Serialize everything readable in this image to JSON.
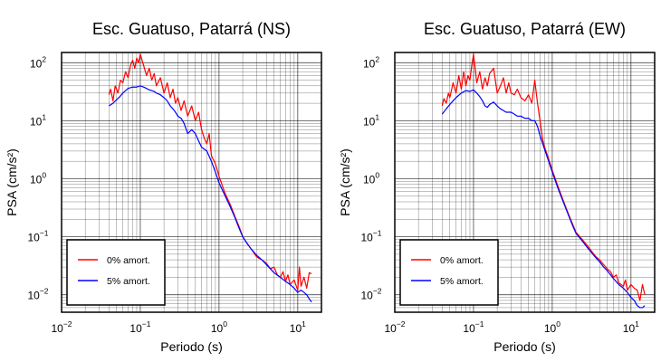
{
  "chart_data": [
    {
      "type": "line",
      "title": "Esc. Guatuso, Patarrá (NS)",
      "xlabel": "Periodo (s)",
      "ylabel": "PSA (cm/s²)",
      "xscale": "log",
      "yscale": "log",
      "xlim": [
        0.01,
        20
      ],
      "ylim": [
        0.005,
        150
      ],
      "grid": true,
      "legend_position": "lower-left",
      "x_ticks": [
        {
          "base": "10",
          "exp": "−2"
        },
        {
          "base": "10",
          "exp": "−1"
        },
        {
          "base": "10",
          "exp": "0"
        },
        {
          "base": "10",
          "exp": "1"
        }
      ],
      "y_ticks": [
        {
          "base": "10",
          "exp": "−2"
        },
        {
          "base": "10",
          "exp": "−1"
        },
        {
          "base": "10",
          "exp": "0"
        },
        {
          "base": "10",
          "exp": "1"
        },
        {
          "base": "10",
          "exp": "2"
        }
      ],
      "series": [
        {
          "name": "0% amort.",
          "color": "#ff0000",
          "points": [
            [
              0.04,
              28
            ],
            [
              0.042,
              35
            ],
            [
              0.045,
              22
            ],
            [
              0.048,
              40
            ],
            [
              0.052,
              30
            ],
            [
              0.056,
              50
            ],
            [
              0.06,
              45
            ],
            [
              0.065,
              70
            ],
            [
              0.07,
              55
            ],
            [
              0.075,
              90
            ],
            [
              0.08,
              110
            ],
            [
              0.085,
              80
            ],
            [
              0.09,
              120
            ],
            [
              0.095,
              100
            ],
            [
              0.1,
              140
            ],
            [
              0.11,
              90
            ],
            [
              0.12,
              60
            ],
            [
              0.13,
              80
            ],
            [
              0.14,
              50
            ],
            [
              0.15,
              65
            ],
            [
              0.16,
              40
            ],
            [
              0.18,
              55
            ],
            [
              0.2,
              30
            ],
            [
              0.22,
              45
            ],
            [
              0.24,
              25
            ],
            [
              0.26,
              35
            ],
            [
              0.28,
              20
            ],
            [
              0.3,
              25
            ],
            [
              0.33,
              15
            ],
            [
              0.36,
              22
            ],
            [
              0.4,
              12
            ],
            [
              0.45,
              18
            ],
            [
              0.5,
              10
            ],
            [
              0.55,
              14
            ],
            [
              0.6,
              7
            ],
            [
              0.65,
              5
            ],
            [
              0.7,
              4
            ],
            [
              0.75,
              6
            ],
            [
              0.8,
              2.5
            ],
            [
              0.9,
              1.8
            ],
            [
              1.0,
              1.1
            ],
            [
              1.2,
              0.55
            ],
            [
              1.4,
              0.35
            ],
            [
              1.6,
              0.22
            ],
            [
              1.8,
              0.15
            ],
            [
              2.0,
              0.1
            ],
            [
              2.3,
              0.075
            ],
            [
              2.6,
              0.06
            ],
            [
              3.0,
              0.045
            ],
            [
              3.5,
              0.04
            ],
            [
              4.0,
              0.035
            ],
            [
              4.5,
              0.028
            ],
            [
              5.0,
              0.03
            ],
            [
              5.5,
              0.022
            ],
            [
              6.0,
              0.02
            ],
            [
              6.5,
              0.025
            ],
            [
              7.0,
              0.017
            ],
            [
              7.5,
              0.022
            ],
            [
              8.0,
              0.015
            ],
            [
              9.0,
              0.018
            ],
            [
              10.0,
              0.012
            ],
            [
              10.5,
              0.03
            ],
            [
              11.0,
              0.014
            ],
            [
              12.0,
              0.02
            ],
            [
              13.0,
              0.013
            ],
            [
              14.0,
              0.024
            ],
            [
              15.0,
              0.023
            ]
          ]
        },
        {
          "name": "5% amort.",
          "color": "#0000ff",
          "points": [
            [
              0.04,
              18
            ],
            [
              0.045,
              20
            ],
            [
              0.05,
              23
            ],
            [
              0.055,
              26
            ],
            [
              0.06,
              30
            ],
            [
              0.065,
              33
            ],
            [
              0.07,
              36
            ],
            [
              0.08,
              38
            ],
            [
              0.09,
              38
            ],
            [
              0.1,
              40
            ],
            [
              0.11,
              38
            ],
            [
              0.12,
              36
            ],
            [
              0.13,
              34
            ],
            [
              0.14,
              33
            ],
            [
              0.15,
              32
            ],
            [
              0.16,
              30
            ],
            [
              0.18,
              28
            ],
            [
              0.2,
              25
            ],
            [
              0.22,
              22
            ],
            [
              0.24,
              18
            ],
            [
              0.26,
              16
            ],
            [
              0.28,
              14
            ],
            [
              0.3,
              12
            ],
            [
              0.33,
              11
            ],
            [
              0.36,
              9
            ],
            [
              0.4,
              6
            ],
            [
              0.45,
              7
            ],
            [
              0.5,
              6
            ],
            [
              0.55,
              4.5
            ],
            [
              0.6,
              3.5
            ],
            [
              0.7,
              3.0
            ],
            [
              0.8,
              2.0
            ],
            [
              0.9,
              1.3
            ],
            [
              1.0,
              0.85
            ],
            [
              1.2,
              0.5
            ],
            [
              1.4,
              0.32
            ],
            [
              1.6,
              0.21
            ],
            [
              1.8,
              0.14
            ],
            [
              2.0,
              0.1
            ],
            [
              2.3,
              0.075
            ],
            [
              2.6,
              0.06
            ],
            [
              3.0,
              0.048
            ],
            [
              3.5,
              0.04
            ],
            [
              4.0,
              0.033
            ],
            [
              4.5,
              0.028
            ],
            [
              5.0,
              0.024
            ],
            [
              6.0,
              0.02
            ],
            [
              7.0,
              0.017
            ],
            [
              8.0,
              0.015
            ],
            [
              9.0,
              0.013
            ],
            [
              10.0,
              0.011
            ],
            [
              11.0,
              0.012
            ],
            [
              12.0,
              0.011
            ],
            [
              13.0,
              0.01
            ],
            [
              14.0,
              0.0085
            ],
            [
              15.0,
              0.0075
            ]
          ]
        }
      ]
    },
    {
      "type": "line",
      "title": "Esc. Guatuso, Patarrá (EW)",
      "xlabel": "Periodo (s)",
      "ylabel": "PSA (cm/s²)",
      "xscale": "log",
      "yscale": "log",
      "xlim": [
        0.01,
        20
      ],
      "ylim": [
        0.005,
        150
      ],
      "grid": true,
      "legend_position": "lower-left",
      "x_ticks": [
        {
          "base": "10",
          "exp": "−2"
        },
        {
          "base": "10",
          "exp": "−1"
        },
        {
          "base": "10",
          "exp": "0"
        },
        {
          "base": "10",
          "exp": "1"
        }
      ],
      "y_ticks": [
        {
          "base": "10",
          "exp": "−2"
        },
        {
          "base": "10",
          "exp": "−1"
        },
        {
          "base": "10",
          "exp": "0"
        },
        {
          "base": "10",
          "exp": "1"
        },
        {
          "base": "10",
          "exp": "2"
        }
      ],
      "series": [
        {
          "name": "0% amort.",
          "color": "#ff0000",
          "points": [
            [
              0.04,
              18
            ],
            [
              0.042,
              24
            ],
            [
              0.045,
              20
            ],
            [
              0.048,
              30
            ],
            [
              0.05,
              25
            ],
            [
              0.055,
              45
            ],
            [
              0.06,
              30
            ],
            [
              0.065,
              60
            ],
            [
              0.07,
              35
            ],
            [
              0.075,
              70
            ],
            [
              0.08,
              40
            ],
            [
              0.085,
              60
            ],
            [
              0.09,
              50
            ],
            [
              0.095,
              90
            ],
            [
              0.1,
              140
            ],
            [
              0.105,
              80
            ],
            [
              0.11,
              45
            ],
            [
              0.12,
              70
            ],
            [
              0.13,
              35
            ],
            [
              0.14,
              55
            ],
            [
              0.15,
              40
            ],
            [
              0.16,
              65
            ],
            [
              0.18,
              80
            ],
            [
              0.2,
              30
            ],
            [
              0.22,
              40
            ],
            [
              0.24,
              55
            ],
            [
              0.26,
              30
            ],
            [
              0.28,
              45
            ],
            [
              0.3,
              30
            ],
            [
              0.33,
              28
            ],
            [
              0.36,
              35
            ],
            [
              0.4,
              25
            ],
            [
              0.45,
              22
            ],
            [
              0.5,
              28
            ],
            [
              0.55,
              20
            ],
            [
              0.6,
              50
            ],
            [
              0.65,
              20
            ],
            [
              0.7,
              10
            ],
            [
              0.75,
              5
            ],
            [
              0.8,
              3.5
            ],
            [
              0.9,
              2.2
            ],
            [
              1.0,
              1.4
            ],
            [
              1.2,
              0.7
            ],
            [
              1.4,
              0.4
            ],
            [
              1.6,
              0.25
            ],
            [
              1.8,
              0.17
            ],
            [
              2.0,
              0.12
            ],
            [
              2.4,
              0.09
            ],
            [
              2.8,
              0.07
            ],
            [
              3.2,
              0.055
            ],
            [
              3.6,
              0.045
            ],
            [
              4.0,
              0.04
            ],
            [
              4.5,
              0.033
            ],
            [
              5.0,
              0.028
            ],
            [
              5.5,
              0.025
            ],
            [
              6.0,
              0.02
            ],
            [
              6.5,
              0.022
            ],
            [
              7.0,
              0.016
            ],
            [
              7.5,
              0.015
            ],
            [
              8.0,
              0.014
            ],
            [
              8.5,
              0.018
            ],
            [
              9.0,
              0.012
            ],
            [
              10.0,
              0.015
            ],
            [
              11.0,
              0.013
            ],
            [
              12.0,
              0.012
            ],
            [
              13.0,
              0.008
            ],
            [
              14.0,
              0.015
            ],
            [
              15.0,
              0.01
            ]
          ]
        },
        {
          "name": "5% amort.",
          "color": "#0000ff",
          "points": [
            [
              0.04,
              13
            ],
            [
              0.045,
              16
            ],
            [
              0.05,
              19
            ],
            [
              0.055,
              22
            ],
            [
              0.06,
              25
            ],
            [
              0.07,
              30
            ],
            [
              0.08,
              33
            ],
            [
              0.09,
              32
            ],
            [
              0.1,
              34
            ],
            [
              0.11,
              30
            ],
            [
              0.12,
              26
            ],
            [
              0.13,
              22
            ],
            [
              0.14,
              18
            ],
            [
              0.15,
              17
            ],
            [
              0.16,
              19
            ],
            [
              0.18,
              21
            ],
            [
              0.2,
              18
            ],
            [
              0.22,
              16
            ],
            [
              0.24,
              15
            ],
            [
              0.26,
              14
            ],
            [
              0.3,
              14
            ],
            [
              0.33,
              13
            ],
            [
              0.36,
              12
            ],
            [
              0.4,
              12
            ],
            [
              0.45,
              11
            ],
            [
              0.5,
              11
            ],
            [
              0.55,
              10
            ],
            [
              0.6,
              10
            ],
            [
              0.65,
              8
            ],
            [
              0.7,
              5.5
            ],
            [
              0.8,
              3.2
            ],
            [
              0.9,
              2.0
            ],
            [
              1.0,
              1.3
            ],
            [
              1.2,
              0.65
            ],
            [
              1.4,
              0.38
            ],
            [
              1.6,
              0.24
            ],
            [
              1.8,
              0.16
            ],
            [
              2.0,
              0.115
            ],
            [
              2.4,
              0.085
            ],
            [
              2.8,
              0.065
            ],
            [
              3.2,
              0.052
            ],
            [
              3.6,
              0.043
            ],
            [
              4.0,
              0.037
            ],
            [
              4.5,
              0.03
            ],
            [
              5.0,
              0.026
            ],
            [
              5.5,
              0.022
            ],
            [
              6.0,
              0.019
            ],
            [
              7.0,
              0.015
            ],
            [
              8.0,
              0.013
            ],
            [
              9.0,
              0.011
            ],
            [
              10.0,
              0.009
            ],
            [
              11.0,
              0.008
            ],
            [
              12.0,
              0.0065
            ],
            [
              13.0,
              0.006
            ],
            [
              14.0,
              0.006
            ],
            [
              15.0,
              0.0065
            ]
          ]
        }
      ]
    }
  ]
}
